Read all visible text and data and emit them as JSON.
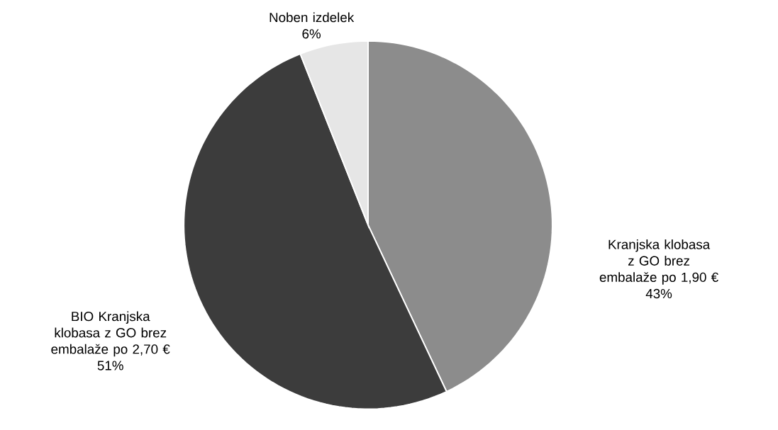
{
  "chart_data": {
    "type": "pie",
    "categories": [
      "Kranjska klobasa z GO brez embalaže po 1,90 €",
      "BIO Kranjska klobasa z GO brez embalaže po 2,70 €",
      "Noben izdelek"
    ],
    "values": [
      43,
      51,
      6
    ],
    "value_labels": [
      "43%",
      "51%",
      "6%"
    ],
    "colors": [
      "#8c8c8c",
      "#3c3c3c",
      "#e6e6e6"
    ]
  }
}
